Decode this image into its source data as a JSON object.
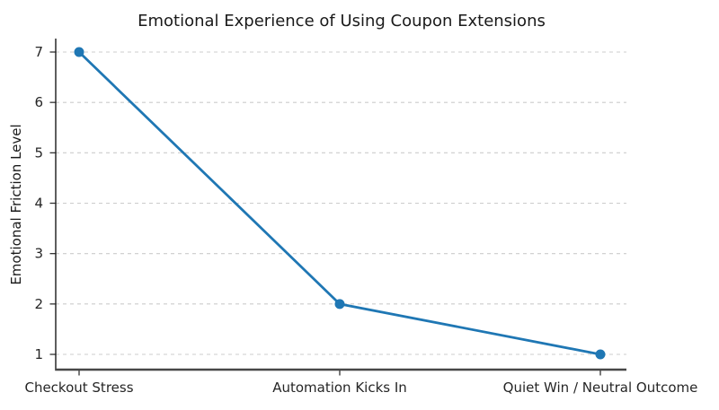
{
  "chart_data": {
    "type": "line",
    "title": "Emotional Experience of Using Coupon Extensions",
    "xlabel": "",
    "ylabel": "Emotional Friction Level",
    "categories": [
      "Checkout Stress",
      "Automation Kicks In",
      "Quiet Win / Neutral Outcome"
    ],
    "series": [
      {
        "name": "Emotional Friction Level",
        "values": [
          7,
          2,
          1
        ]
      }
    ],
    "yticks": [
      1,
      2,
      3,
      4,
      5,
      6,
      7
    ],
    "ylim": [
      1,
      7
    ],
    "grid": "horizontal, dashed",
    "legend_position": "none",
    "marker": "circle",
    "colors": {
      "line": "#1f77b4",
      "marker": "#1f77b4",
      "grid": "#cccccc",
      "spine_left": "#1a1a1a",
      "spine_bottom": "#474747",
      "text": "#262626",
      "background": "#ffffff"
    }
  }
}
